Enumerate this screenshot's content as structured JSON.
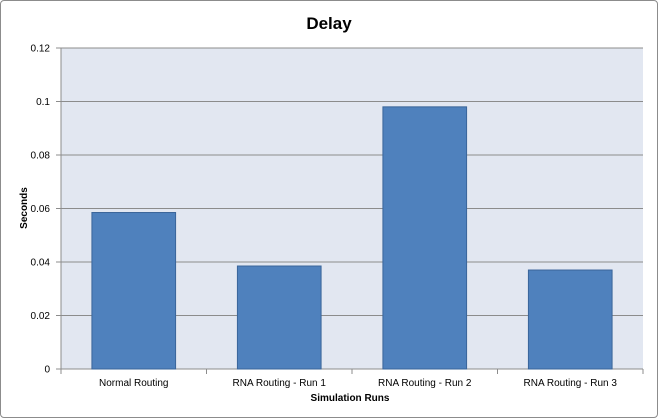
{
  "chart_data": {
    "type": "bar",
    "title": "Delay",
    "xlabel": "Simulation Runs",
    "ylabel": "Seconds",
    "categories": [
      "Normal Routing",
      "RNA Routing - Run 1",
      "RNA Routing - Run 2",
      "RNA Routing - Run 3"
    ],
    "values": [
      0.0585,
      0.0385,
      0.098,
      0.037
    ],
    "ylim": [
      0,
      0.12
    ],
    "yticks": [
      0,
      0.02,
      0.04,
      0.06,
      0.08,
      0.1,
      0.12
    ],
    "ytick_labels": [
      "0",
      "0.02",
      "0.04",
      "0.06",
      "0.08",
      "0.1",
      "0.12"
    ],
    "grid": true,
    "legend": "none",
    "colors": {
      "bar_fill": "#4f81bd",
      "bar_stroke": "#3a659a",
      "plot_background": "#e2e7f1",
      "gridline": "#8c8c8c",
      "axis_line": "#8c8c8c"
    }
  }
}
